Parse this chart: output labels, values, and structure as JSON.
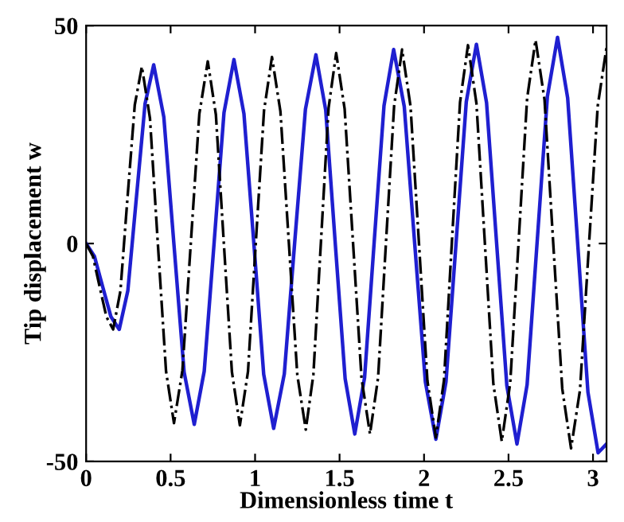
{
  "chart_data": {
    "type": "line",
    "xlabel": "Dimensionless time t",
    "ylabel": "Tip displacement w",
    "xlim": [
      0,
      3.08
    ],
    "ylim": [
      -50,
      50
    ],
    "xticks": [
      0,
      0.5,
      1,
      1.5,
      2,
      2.5,
      3
    ],
    "yticks": [
      -50,
      0,
      50
    ],
    "grid": false,
    "legend": false,
    "series": [
      {
        "color": "#1f1fd0",
        "line_style": "solid",
        "x": [
          0,
          0.049,
          0.098,
          0.147,
          0.196,
          0.247,
          0.298,
          0.349,
          0.4,
          0.46,
          0.52,
          0.58,
          0.64,
          0.699,
          0.758,
          0.816,
          0.875,
          0.934,
          0.993,
          1.051,
          1.11,
          1.173,
          1.235,
          1.298,
          1.36,
          1.418,
          1.475,
          1.533,
          1.59,
          1.648,
          1.705,
          1.763,
          1.82,
          1.883,
          1.945,
          2.008,
          2.07,
          2.13,
          2.19,
          2.25,
          2.31,
          2.37,
          2.43,
          2.49,
          2.55,
          2.61,
          2.67,
          2.73,
          2.79,
          2.85,
          2.91,
          2.97,
          3.03,
          3.08
        ],
        "values": [
          0,
          -2.9,
          -9.9,
          -16.8,
          -19.7,
          -10.8,
          10.7,
          32.1,
          41,
          29.0,
          -0.3,
          -29.5,
          -41.5,
          -29.3,
          0.4,
          30.0,
          42.2,
          29.8,
          -0.1,
          -30.0,
          -42.4,
          -29.9,
          0.5,
          30.8,
          43.3,
          30.6,
          -0.2,
          -31.0,
          -43.7,
          -30.8,
          0.4,
          31.6,
          44.5,
          31.4,
          -0.2,
          -31.8,
          -44.9,
          -31.7,
          0.4,
          32.5,
          45.7,
          32.3,
          -0.2,
          -32.6,
          -46,
          -32.4,
          0.7,
          33.7,
          47.3,
          33.4,
          -0.4,
          -34.1,
          -48,
          -46
        ]
      },
      {
        "color": "#000000",
        "line_style": "dashdot",
        "x": [
          0,
          0.04,
          0.08,
          0.12,
          0.16,
          0.203,
          0.245,
          0.288,
          0.33,
          0.378,
          0.425,
          0.473,
          0.52,
          0.57,
          0.62,
          0.67,
          0.72,
          0.768,
          0.815,
          0.863,
          0.91,
          0.958,
          1.005,
          1.053,
          1.1,
          1.15,
          1.2,
          1.25,
          1.3,
          1.345,
          1.39,
          1.435,
          1.48,
          1.53,
          1.58,
          1.63,
          1.68,
          1.728,
          1.775,
          1.823,
          1.87,
          1.92,
          1.97,
          2.02,
          2.07,
          2.118,
          2.165,
          2.213,
          2.26,
          2.31,
          2.36,
          2.41,
          2.46,
          2.51,
          2.56,
          2.61,
          2.66,
          2.713,
          2.765,
          2.818,
          2.87,
          2.923,
          2.975,
          3.028,
          3.08
        ],
        "values": [
          0,
          -2.9,
          -9.9,
          -16.8,
          -19.7,
          -10.9,
          10.5,
          31.8,
          40.6,
          28.7,
          -0.3,
          -29.3,
          -41.2,
          -29.1,
          0.3,
          29.7,
          41.8,
          29.6,
          0.1,
          -29.5,
          -41.7,
          -29.4,
          0.6,
          30.5,
          42.8,
          30.3,
          0.1,
          -30.2,
          -42.7,
          -30.1,
          0.5,
          31.1,
          43.7,
          30.9,
          0,
          -30.9,
          -43.7,
          -30.8,
          0.4,
          31.6,
          44.5,
          31.5,
          0,
          -31.5,
          -44.5,
          -31.4,
          0.5,
          32.4,
          45.5,
          32.2,
          0.1,
          -32.1,
          -45.4,
          -32.0,
          0.6,
          33.3,
          46.7,
          33.0,
          -0.2,
          -33.3,
          -47,
          -33.6,
          -1,
          31.6,
          45
        ]
      }
    ]
  }
}
